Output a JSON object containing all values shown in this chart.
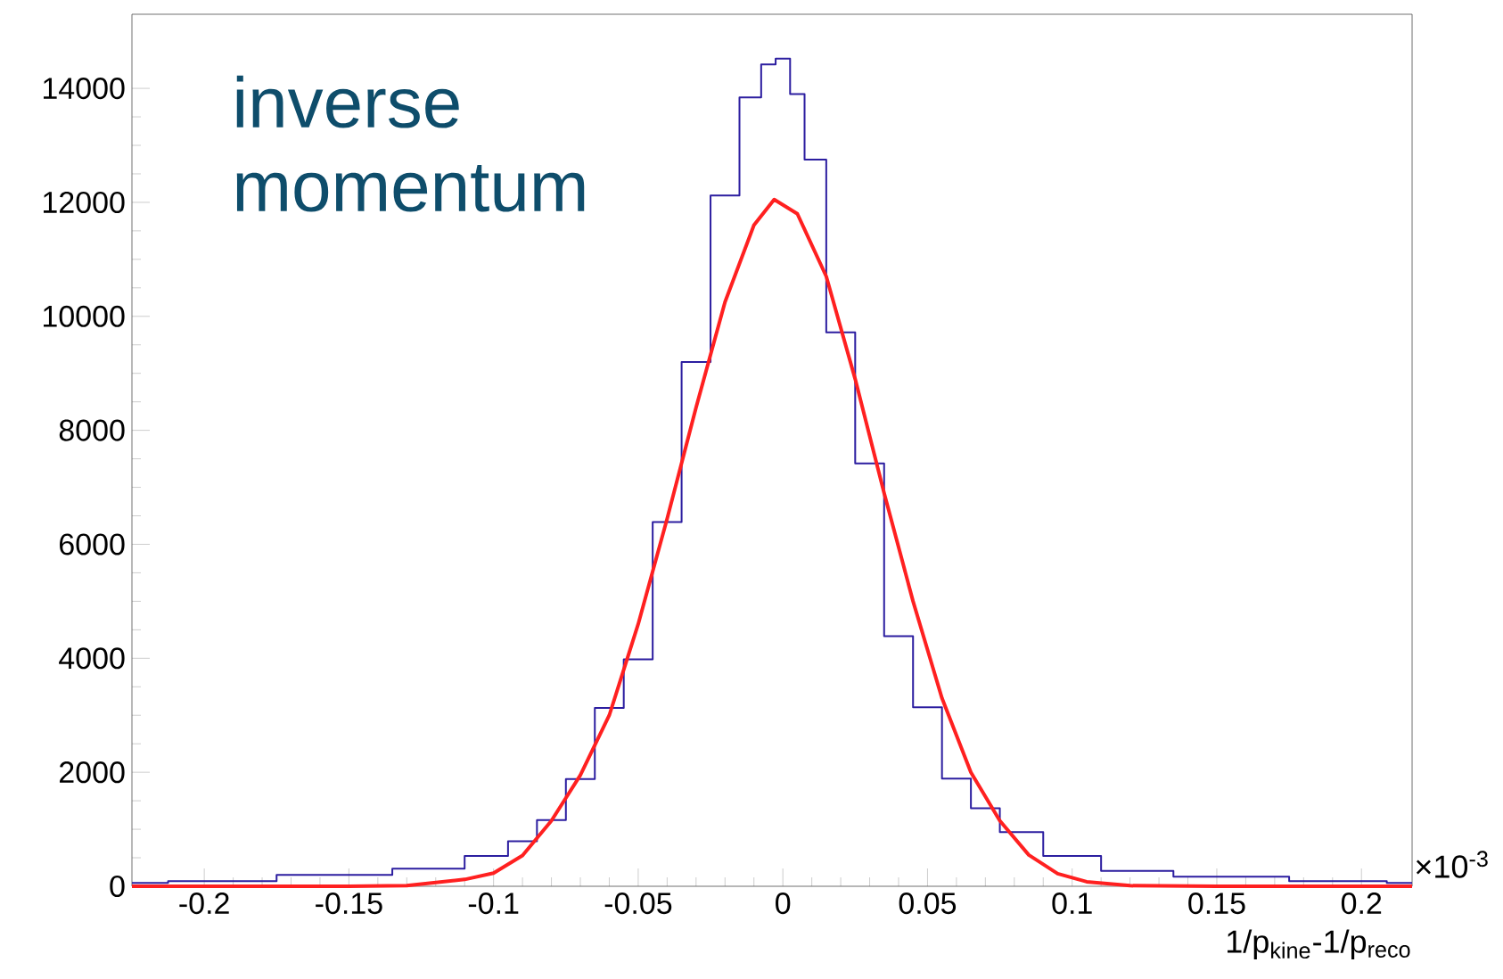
{
  "chart_data": {
    "type": "step",
    "title": "inverse momentum",
    "xlabel": "1/p$_{kine}$-1/p$_{reco}$",
    "annotations": [
      "×10$^{-3}$"
    ],
    "xlim": [
      -0.225,
      0.2175
    ],
    "ylim": [
      0,
      15300
    ],
    "xticks": [
      -0.2,
      -0.15,
      -0.1,
      -0.05,
      0,
      0.05,
      0.1,
      0.15,
      0.2
    ],
    "yticks": [
      0,
      2000,
      4000,
      6000,
      8000,
      10000,
      12000,
      14000
    ],
    "series": [
      {
        "color": "#2c1ea0",
        "x": [
          -0.225,
          -0.2,
          -0.15,
          -0.12,
          -0.1,
          -0.09,
          -0.08,
          -0.07,
          -0.06,
          -0.05,
          -0.04,
          -0.03,
          -0.02,
          -0.01,
          -0.005,
          0,
          0.005,
          0.01,
          0.02,
          0.03,
          0.04,
          0.05,
          0.06,
          0.07,
          0.08,
          0.1,
          0.12,
          0.15,
          0.2,
          0.2175
        ],
        "values": [
          60,
          90,
          200,
          310,
          530,
          790,
          1160,
          1880,
          3130,
          3980,
          6390,
          9200,
          12120,
          13840,
          14420,
          14520,
          13900,
          12750,
          9720,
          7420,
          4390,
          3140,
          1890,
          1370,
          950,
          530,
          270,
          170,
          90,
          60
        ]
      },
      {
        "type": "line",
        "color": "#ff2020",
        "x": [
          -0.225,
          -0.15,
          -0.13,
          -0.11,
          -0.1,
          -0.09,
          -0.08,
          -0.07,
          -0.06,
          -0.05,
          -0.04,
          -0.03,
          -0.02,
          -0.01,
          -0.003,
          0.005,
          0.015,
          0.025,
          0.035,
          0.045,
          0.055,
          0.065,
          0.075,
          0.085,
          0.095,
          0.105,
          0.12,
          0.15,
          0.2175
        ],
        "values": [
          0,
          0,
          10,
          120,
          230,
          540,
          1150,
          1950,
          3000,
          4600,
          6450,
          8400,
          10250,
          11600,
          12050,
          11800,
          10700,
          8900,
          6900,
          5000,
          3300,
          2000,
          1150,
          550,
          220,
          80,
          10,
          0,
          0
        ]
      }
    ]
  }
}
